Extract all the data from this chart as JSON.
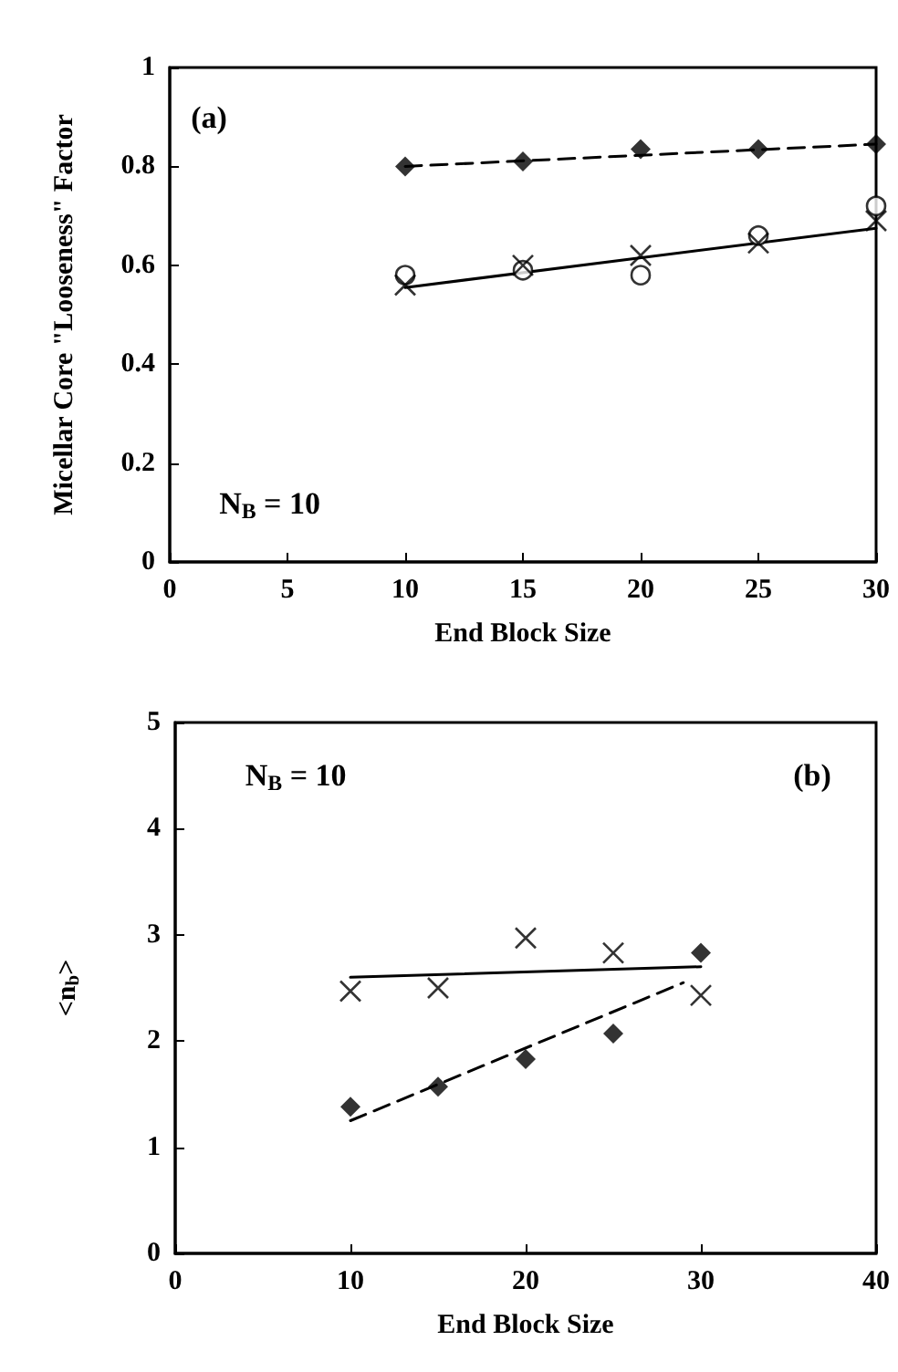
{
  "chart_data": [
    {
      "type": "scatter",
      "xlabel": "End Block Size",
      "ylabel": "Micellar Core \"Looseness\" Factor",
      "xlim": [
        0,
        30
      ],
      "xticks": [
        0,
        5,
        10,
        15,
        20,
        25,
        30
      ],
      "ylim": [
        0,
        1
      ],
      "yticks": [
        0,
        0.2,
        0.4,
        0.6,
        0.8,
        1
      ],
      "grid": false,
      "annotations": [
        "(a)",
        "N$_{B}$ = 10"
      ],
      "x": [
        10,
        15,
        20,
        25,
        30
      ],
      "series": [
        {
          "marker": "diamond",
          "color": "#000000",
          "values": [
            0.8,
            0.81,
            0.835,
            0.835,
            0.845
          ]
        },
        {
          "marker": "circle",
          "color": "#000000",
          "values": [
            0.58,
            0.59,
            0.58,
            0.66,
            0.72
          ]
        },
        {
          "marker": "cross",
          "color": "#000000",
          "values": [
            0.56,
            0.6,
            0.62,
            0.645,
            0.69
          ]
        },
        {
          "type": "line",
          "marker": "none",
          "line_style": "dashed",
          "color": "#000000",
          "x": [
            10,
            30
          ],
          "values": [
            0.8,
            0.845
          ]
        },
        {
          "type": "line",
          "marker": "none",
          "line_style": "solid",
          "color": "#000000",
          "x": [
            10,
            30
          ],
          "values": [
            0.555,
            0.675
          ]
        }
      ]
    },
    {
      "type": "scatter",
      "xlabel": "End Block Size",
      "ylabel": "<n$_{b}$>",
      "xlim": [
        0,
        40
      ],
      "xticks": [
        0,
        10,
        20,
        30,
        40
      ],
      "ylim": [
        0,
        5
      ],
      "yticks": [
        0,
        1,
        2,
        3,
        4,
        5
      ],
      "grid": false,
      "annotations": [
        "N$_{B}$ = 10",
        "(b)"
      ],
      "x": [
        10,
        15,
        20,
        25,
        30
      ],
      "series": [
        {
          "marker": "cross",
          "color": "#000000",
          "values": [
            2.47,
            2.5,
            2.97,
            2.83,
            2.43
          ]
        },
        {
          "marker": "diamond",
          "color": "#000000",
          "values": [
            1.38,
            1.57,
            1.83,
            2.07,
            2.83
          ]
        },
        {
          "type": "line",
          "marker": "none",
          "line_style": "solid",
          "color": "#000000",
          "x": [
            10,
            30
          ],
          "values": [
            2.6,
            2.7
          ]
        },
        {
          "type": "line",
          "marker": "none",
          "line_style": "dashed",
          "color": "#000000",
          "x": [
            10,
            29
          ],
          "values": [
            1.25,
            2.55
          ]
        }
      ]
    }
  ]
}
